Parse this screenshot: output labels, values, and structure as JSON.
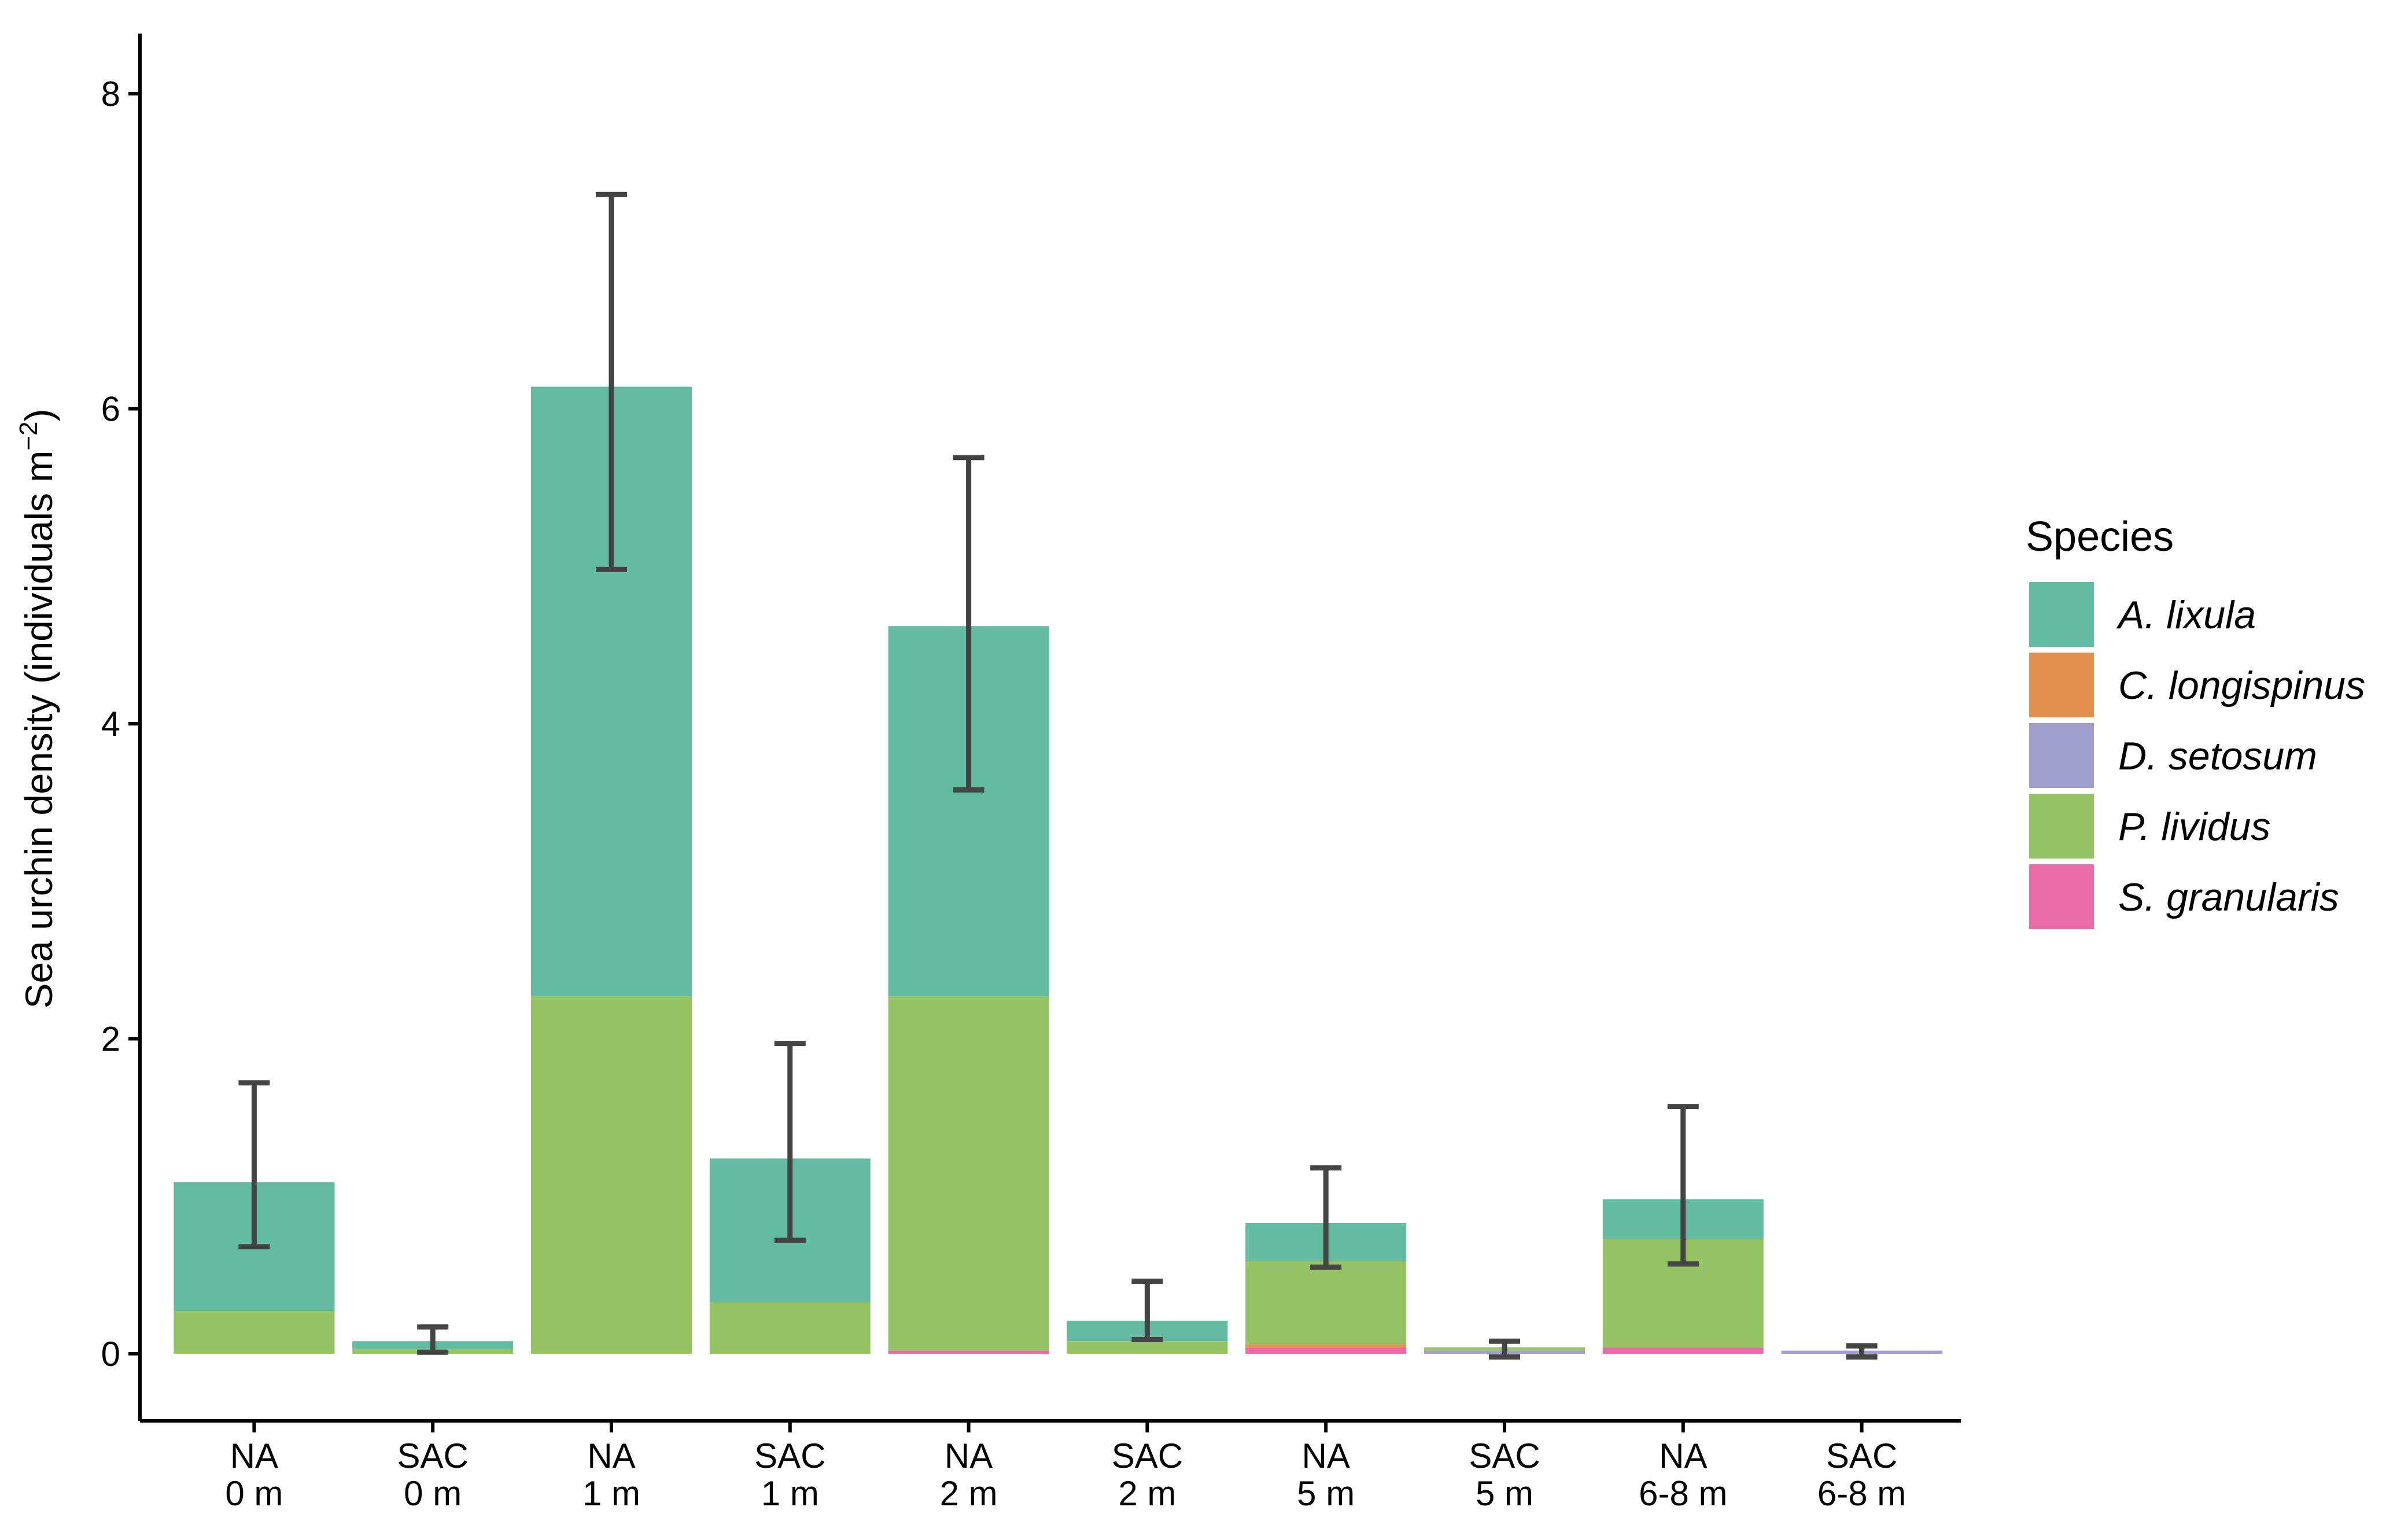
{
  "chart_data": {
    "type": "bar",
    "stacked": true,
    "title": "",
    "xlabel": "",
    "ylabel_main": "Sea urchin density (individuals m",
    "ylabel_sup": "−2",
    "ylabel_end": ")",
    "ylim": [
      -0.3,
      8.4
    ],
    "yticks": [
      0,
      2,
      4,
      6,
      8
    ],
    "ytick_labels": [
      "0",
      "2",
      "4",
      "6",
      "8"
    ],
    "categories": [
      {
        "line1": "NA",
        "line2": "0 m"
      },
      {
        "line1": "SAC",
        "line2": "0 m"
      },
      {
        "line1": "NA",
        "line2": "1 m"
      },
      {
        "line1": "SAC",
        "line2": "1 m"
      },
      {
        "line1": "NA",
        "line2": "2 m"
      },
      {
        "line1": "SAC",
        "line2": "2 m"
      },
      {
        "line1": "NA",
        "line2": "5 m"
      },
      {
        "line1": "SAC",
        "line2": "5 m"
      },
      {
        "line1": "NA",
        "line2": "6-8 m"
      },
      {
        "line1": "SAC",
        "line2": "6-8 m"
      }
    ],
    "stack_order": [
      "S. granularis",
      "D. setosum",
      "C. longispinus",
      "P. lividus",
      "A. lixula"
    ],
    "series": [
      {
        "name": "A. lixula",
        "color": "#63BCA2",
        "values": [
          0.82,
          0.05,
          3.87,
          0.91,
          2.35,
          0.13,
          0.24,
          0.0,
          0.25,
          0.0
        ]
      },
      {
        "name": "C. longispinus",
        "color": "#E4914F",
        "values": [
          0.0,
          0.0,
          0.0,
          0.0,
          0.0,
          0.0,
          0.02,
          0.0,
          0.0,
          0.0
        ]
      },
      {
        "name": "D. setosum",
        "color": "#A19FCC",
        "values": [
          0.0,
          0.0,
          0.0,
          0.0,
          0.0,
          0.0,
          0.0,
          0.02,
          0.0,
          0.02
        ]
      },
      {
        "name": "P. lividus",
        "color": "#95C262",
        "values": [
          0.27,
          0.03,
          2.27,
          0.33,
          2.25,
          0.08,
          0.53,
          0.02,
          0.69,
          0.0
        ]
      },
      {
        "name": "S. granularis",
        "color": "#EA6BAA",
        "values": [
          0.0,
          0.0,
          0.0,
          0.0,
          0.02,
          0.0,
          0.04,
          0.0,
          0.04,
          0.0
        ]
      }
    ],
    "error_bars": [
      {
        "low": 0.68,
        "high": 1.72
      },
      {
        "low": 0.01,
        "high": 0.17
      },
      {
        "low": 4.98,
        "high": 7.36
      },
      {
        "low": 0.72,
        "high": 1.97
      },
      {
        "low": 3.58,
        "high": 5.69
      },
      {
        "low": 0.09,
        "high": 0.46
      },
      {
        "low": 0.55,
        "high": 1.18
      },
      {
        "low": -0.02,
        "high": 0.08
      },
      {
        "low": 0.57,
        "high": 1.57
      },
      {
        "low": -0.02,
        "high": 0.05
      }
    ],
    "legend": {
      "title": "Species",
      "position": "right",
      "entries": [
        {
          "label": "A. lixula",
          "color": "#63BCA2"
        },
        {
          "label": "C. longispinus",
          "color": "#E4914F"
        },
        {
          "label": "D. setosum",
          "color": "#A19FCC"
        },
        {
          "label": "P. lividus",
          "color": "#95C262"
        },
        {
          "label": "S. granularis",
          "color": "#EA6BAA"
        }
      ]
    },
    "grid": false
  }
}
